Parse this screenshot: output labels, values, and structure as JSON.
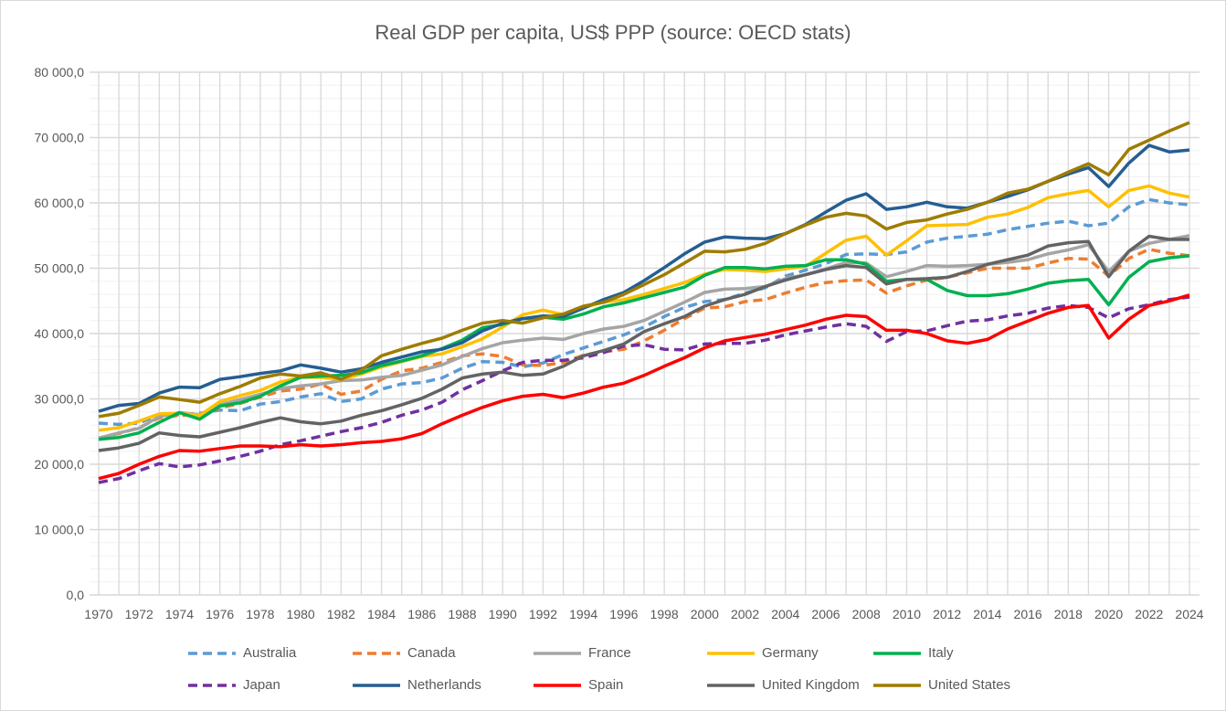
{
  "chart_data": {
    "type": "line",
    "title": "Real GDP per capita, US$ PPP (source: OECD stats)",
    "xlabel": "",
    "ylabel": "",
    "ylim": [
      0,
      80000
    ],
    "y_ticks": [
      "0,0",
      "10 000,0",
      "20 000,0",
      "30 000,0",
      "40 000,0",
      "50 000,0",
      "60 000,0",
      "70 000,0",
      "80 000,0"
    ],
    "x_tick_labels": [
      "1970",
      "1972",
      "1974",
      "1976",
      "1978",
      "1980",
      "1982",
      "1984",
      "1986",
      "1988",
      "1990",
      "1992",
      "1994",
      "1996",
      "1998",
      "2000",
      "2002",
      "2004",
      "2006",
      "2008",
      "2010",
      "2012",
      "2014",
      "2016",
      "2018",
      "2020",
      "2022",
      "2024"
    ],
    "grid": true,
    "legend_position": "bottom",
    "x": [
      1970,
      1971,
      1972,
      1973,
      1974,
      1975,
      1976,
      1977,
      1978,
      1979,
      1980,
      1981,
      1982,
      1983,
      1984,
      1985,
      1986,
      1987,
      1988,
      1989,
      1990,
      1991,
      1992,
      1993,
      1994,
      1995,
      1996,
      1997,
      1998,
      1999,
      2000,
      2001,
      2002,
      2003,
      2004,
      2005,
      2006,
      2007,
      2008,
      2009,
      2010,
      2011,
      2012,
      2013,
      2014,
      2015,
      2016,
      2017,
      2018,
      2019,
      2020,
      2021,
      2022,
      2023,
      2024
    ],
    "series": [
      {
        "name": "Australia",
        "color": "#5b9bd5",
        "dashed": true,
        "values": [
          26300,
          26100,
          26300,
          27600,
          27600,
          27800,
          28300,
          28200,
          29200,
          29600,
          30300,
          30800,
          29600,
          30000,
          31500,
          32300,
          32500,
          33200,
          34700,
          35700,
          35600,
          34900,
          35500,
          36800,
          37800,
          38800,
          39800,
          41000,
          42600,
          44000,
          44900,
          45200,
          46200,
          47000,
          48800,
          49700,
          50700,
          52100,
          52200,
          52100,
          52500,
          54000,
          54600,
          54900,
          55200,
          55900,
          56400,
          56900,
          57200,
          56500,
          56900,
          59400,
          60500,
          60000,
          59700
        ]
      },
      {
        "name": "Canada",
        "color": "#ed7d31",
        "dashed": true,
        "values": [
          24000,
          24700,
          25600,
          27100,
          27500,
          27500,
          28600,
          29300,
          30300,
          31200,
          31500,
          32300,
          30700,
          31200,
          33000,
          34300,
          34700,
          35600,
          36600,
          36900,
          36500,
          35200,
          35100,
          35600,
          36700,
          37200,
          37600,
          38900,
          40500,
          42300,
          43900,
          44100,
          44900,
          45200,
          46200,
          47100,
          47800,
          48100,
          48200,
          46200,
          47300,
          48200,
          48600,
          49300,
          50000,
          50000,
          50000,
          50800,
          51500,
          51400,
          48800,
          51500,
          52900,
          52300,
          51900
        ]
      },
      {
        "name": "France",
        "color": "#a5a5a5",
        "dashed": false,
        "values": [
          24000,
          24800,
          25500,
          27300,
          27900,
          27600,
          29100,
          29900,
          30700,
          31600,
          32000,
          32300,
          32800,
          32900,
          33300,
          33600,
          34400,
          35200,
          36500,
          37700,
          38600,
          39000,
          39300,
          39100,
          40000,
          40700,
          41100,
          42000,
          43400,
          44800,
          46300,
          46800,
          46900,
          47200,
          48400,
          49000,
          49900,
          50900,
          50800,
          48700,
          49500,
          50400,
          50300,
          50400,
          50600,
          50900,
          51300,
          52200,
          52800,
          53600,
          49500,
          52600,
          53800,
          54400,
          55000
        ]
      },
      {
        "name": "Germany",
        "color": "#ffc000",
        "dashed": false,
        "values": [
          25200,
          25600,
          26600,
          27700,
          27800,
          27500,
          29600,
          30500,
          31300,
          32600,
          33300,
          33300,
          33000,
          33800,
          34900,
          35700,
          36500,
          36900,
          38000,
          39200,
          41000,
          42900,
          43600,
          42900,
          44000,
          44800,
          45200,
          46000,
          46900,
          47800,
          49100,
          49800,
          49700,
          49500,
          49900,
          50300,
          52300,
          54300,
          54900,
          52000,
          54200,
          56500,
          56600,
          56700,
          57800,
          58300,
          59300,
          60800,
          61400,
          61900,
          59400,
          61900,
          62600,
          61500,
          60900
        ]
      },
      {
        "name": "Italy",
        "color": "#00b050",
        "dashed": false,
        "values": [
          23800,
          24100,
          24800,
          26400,
          27900,
          26900,
          28900,
          29400,
          30400,
          32000,
          33300,
          33500,
          33600,
          34000,
          35100,
          35800,
          36600,
          37700,
          39000,
          40900,
          41400,
          42300,
          42500,
          42200,
          43000,
          44100,
          44700,
          45500,
          46300,
          47100,
          48900,
          50100,
          50100,
          49900,
          50300,
          50400,
          51300,
          51300,
          50600,
          48000,
          48300,
          48300,
          46600,
          45800,
          45800,
          46100,
          46800,
          47700,
          48100,
          48300,
          44400,
          48600,
          51000,
          51600,
          51900
        ]
      },
      {
        "name": "Japan",
        "color": "#7030a0",
        "dashed": true,
        "values": [
          17200,
          17800,
          19000,
          20100,
          19600,
          19900,
          20500,
          21200,
          22000,
          23000,
          23600,
          24300,
          25000,
          25600,
          26400,
          27500,
          28300,
          29500,
          31400,
          32800,
          34300,
          35600,
          35900,
          35900,
          36300,
          37100,
          38100,
          38300,
          37600,
          37500,
          38400,
          38500,
          38500,
          39000,
          39800,
          40400,
          41000,
          41500,
          41100,
          38800,
          40300,
          40400,
          41200,
          41900,
          42100,
          42700,
          43100,
          43900,
          44300,
          44000,
          42400,
          43800,
          44400,
          45200,
          45600
        ]
      },
      {
        "name": "Netherlands",
        "color": "#255e91",
        "dashed": false,
        "values": [
          28100,
          29000,
          29300,
          30900,
          31800,
          31700,
          33000,
          33400,
          33900,
          34300,
          35200,
          34700,
          34100,
          34600,
          35600,
          36400,
          37200,
          37600,
          38600,
          40400,
          41600,
          42300,
          42700,
          42600,
          43900,
          45200,
          46300,
          48100,
          50100,
          52200,
          54000,
          54800,
          54600,
          54500,
          55300,
          56700,
          58600,
          60400,
          61400,
          59000,
          59400,
          60100,
          59400,
          59200,
          60100,
          61000,
          62000,
          63300,
          64400,
          65400,
          62500,
          66100,
          68800,
          67800,
          68100
        ]
      },
      {
        "name": "Spain",
        "color": "#ff0000",
        "dashed": false,
        "values": [
          17800,
          18600,
          20000,
          21200,
          22100,
          22000,
          22400,
          22800,
          22800,
          22700,
          23000,
          22800,
          23000,
          23300,
          23500,
          23900,
          24700,
          26200,
          27500,
          28700,
          29700,
          30400,
          30700,
          30200,
          30900,
          31800,
          32400,
          33600,
          35000,
          36300,
          37800,
          38900,
          39400,
          39900,
          40600,
          41300,
          42200,
          42800,
          42600,
          40500,
          40500,
          40000,
          38900,
          38500,
          39100,
          40700,
          41900,
          43100,
          44000,
          44300,
          39300,
          42200,
          44300,
          45000,
          45900
        ]
      },
      {
        "name": "United Kingdom",
        "color": "#636363",
        "dashed": false,
        "values": [
          22100,
          22500,
          23200,
          24800,
          24400,
          24200,
          24900,
          25600,
          26400,
          27100,
          26500,
          26200,
          26600,
          27500,
          28200,
          29100,
          30100,
          31500,
          33200,
          33800,
          34100,
          33600,
          33800,
          35000,
          36600,
          37400,
          38400,
          40300,
          41500,
          42600,
          44200,
          45200,
          46000,
          47200,
          48200,
          49000,
          49800,
          50400,
          50100,
          47600,
          48300,
          48400,
          48600,
          49500,
          50600,
          51300,
          52000,
          53400,
          53900,
          54100,
          48700,
          52600,
          54900,
          54400,
          54400
        ]
      },
      {
        "name": "United States",
        "color": "#9e7c00",
        "dashed": false,
        "values": [
          27300,
          27800,
          29000,
          30300,
          29900,
          29500,
          30800,
          31900,
          33200,
          33800,
          33500,
          34000,
          33000,
          34400,
          36600,
          37600,
          38500,
          39300,
          40500,
          41600,
          42000,
          41600,
          42400,
          43000,
          44200,
          44800,
          46000,
          47500,
          49000,
          50800,
          52600,
          52500,
          52900,
          53800,
          55300,
          56600,
          57800,
          58400,
          58000,
          56000,
          57000,
          57400,
          58300,
          59000,
          60100,
          61500,
          62100,
          63300,
          64700,
          66000,
          64300,
          68200,
          69600,
          71000,
          72300
        ]
      }
    ]
  }
}
